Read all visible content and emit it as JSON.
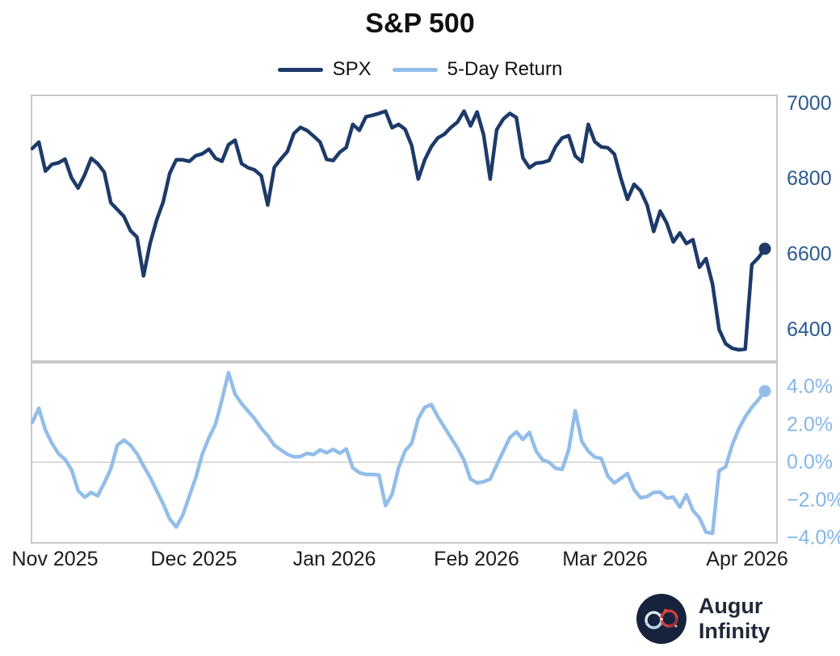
{
  "title": "S&P 500",
  "legend": {
    "items": [
      {
        "label": "SPX",
        "color": "#1d3a68"
      },
      {
        "label": "5-Day Return",
        "color": "#93bde9"
      }
    ]
  },
  "footer": {
    "brand": "Augur Infinity"
  },
  "colors": {
    "price_line": "#1d3a68",
    "return_line": "#93bde9",
    "price_tick_label": "#2b5a8f",
    "return_tick_label": "#85b6e7",
    "panel_border": "#c9c9c9",
    "zero_gridline": "#cfcfcf",
    "x_tick_label": "#1c1c1c",
    "logo_circle": "#17233c",
    "logo_red": "#cf4040",
    "logo_blue": "#8fc1f0"
  },
  "chart_data": {
    "type": "line",
    "title": "S&P 500",
    "legend_position": "top-center",
    "grid": "zero-line only (bottom panel)",
    "x_axis": {
      "type": "date",
      "tick_labels": [
        "Nov 2025",
        "Dec 2025",
        "Jan 2026",
        "Feb 2026",
        "Mar 2026",
        "Apr 2026"
      ]
    },
    "panels": [
      {
        "name": "price",
        "ylim": [
          6316,
          7021
        ],
        "ytick_values": [
          7000,
          6800,
          6600,
          6400
        ],
        "ytick_labels": [
          "7000",
          "6800",
          "6600",
          "6400"
        ],
        "series": [
          {
            "name": "SPX",
            "color": "#1d3a68",
            "end_marker": true,
            "last_value": 6614,
            "values": [
              6880,
              6897,
              6820,
              6838,
              6842,
              6852,
              6802,
              6775,
              6810,
              6854,
              6840,
              6817,
              6736,
              6718,
              6700,
              6662,
              6645,
              6542,
              6628,
              6690,
              6738,
              6814,
              6850,
              6850,
              6846,
              6861,
              6866,
              6878,
              6854,
              6846,
              6890,
              6902,
              6840,
              6829,
              6823,
              6808,
              6730,
              6830,
              6852,
              6872,
              6920,
              6936,
              6928,
              6913,
              6897,
              6851,
              6848,
              6870,
              6883,
              6944,
              6928,
              6964,
              6968,
              6973,
              6979,
              6935,
              6944,
              6931,
              6888,
              6799,
              6850,
              6885,
              6908,
              6918,
              6936,
              6950,
              6979,
              6940,
              6977,
              6916,
              6799,
              6930,
              6958,
              6973,
              6962,
              6855,
              6829,
              6841,
              6843,
              6848,
              6885,
              6908,
              6914,
              6860,
              6845,
              6944,
              6898,
              6884,
              6882,
              6865,
              6800,
              6745,
              6785,
              6768,
              6730,
              6660,
              6714,
              6682,
              6632,
              6656,
              6628,
              6638,
              6565,
              6588,
              6520,
              6400,
              6362,
              6350,
              6346,
              6348,
              6572,
              6590,
              6614
            ]
          }
        ]
      },
      {
        "name": "return_pct",
        "ylim": [
          -4.27,
          5.26
        ],
        "ytick_values": [
          4,
          2,
          0,
          -2,
          -4
        ],
        "ytick_labels": [
          "4.0%",
          "2.0%",
          "0.0%",
          "−2.0%",
          "−4.0%"
        ],
        "zero_line": true,
        "series": [
          {
            "name": "5-Day Return",
            "color": "#93bde9",
            "end_marker": true,
            "last_value": 3.76,
            "values": [
              2.1,
              2.85,
              1.7,
              1.0,
              0.45,
              0.15,
              -0.4,
              -1.5,
              -1.85,
              -1.6,
              -1.78,
              -1.1,
              -0.35,
              0.9,
              1.17,
              0.9,
              0.45,
              -0.2,
              -0.8,
              -1.5,
              -2.2,
              -3.0,
              -3.43,
              -2.8,
              -1.8,
              -0.8,
              0.45,
              1.3,
              2.0,
              3.3,
              4.74,
              3.6,
              3.1,
              2.7,
              2.3,
              1.8,
              1.4,
              0.9,
              0.65,
              0.42,
              0.28,
              0.3,
              0.47,
              0.4,
              0.65,
              0.5,
              0.68,
              0.47,
              0.7,
              -0.3,
              -0.55,
              -0.65,
              -0.65,
              -0.68,
              -2.3,
              -1.7,
              -0.3,
              0.6,
              1.0,
              2.3,
              2.9,
              3.05,
              2.4,
              1.85,
              1.3,
              0.75,
              0.1,
              -0.9,
              -1.1,
              -1.03,
              -0.9,
              -0.15,
              0.58,
              1.3,
              1.6,
              1.2,
              1.58,
              0.6,
              0.12,
              0.0,
              -0.32,
              -0.38,
              0.65,
              2.72,
              1.1,
              0.58,
              0.27,
              0.2,
              -0.75,
              -1.1,
              -0.85,
              -0.6,
              -1.45,
              -1.88,
              -1.82,
              -1.6,
              -1.58,
              -1.9,
              -1.85,
              -2.38,
              -1.72,
              -2.55,
              -2.95,
              -3.7,
              -3.76,
              -0.45,
              -0.25,
              0.9,
              1.75,
              2.4,
              2.9,
              3.3,
              3.76
            ]
          }
        ]
      }
    ]
  }
}
